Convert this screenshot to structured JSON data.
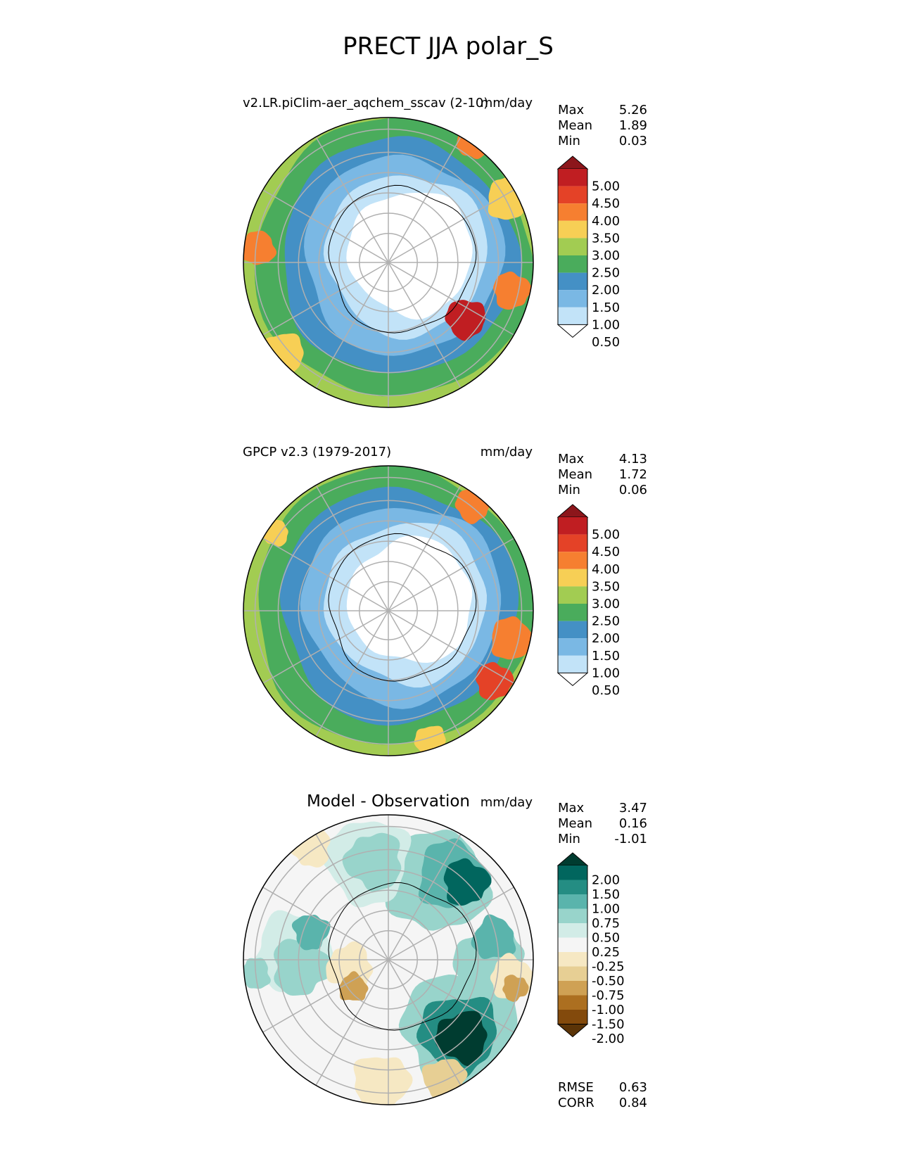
{
  "figure": {
    "title": "PRECT JJA polar_S"
  },
  "chart_data": [
    {
      "type": "heatmap",
      "projection": "south-polar-stereographic",
      "title": "v2.LR.piClim-aer_aqchem_sscav (2-10)",
      "units": "mm/day",
      "stats": [
        {
          "label": "Max",
          "value": "5.26"
        },
        {
          "label": "Mean",
          "value": "1.89"
        },
        {
          "label": "Min",
          "value": "0.03"
        }
      ],
      "colorbar": {
        "ticks": [
          "5.00",
          "4.50",
          "4.00",
          "3.50",
          "3.00",
          "2.50",
          "2.00",
          "1.50",
          "1.00",
          "0.50"
        ],
        "colors": [
          "#8c161b",
          "#c01e22",
          "#e44227",
          "#f67f30",
          "#f7cf55",
          "#a2cc52",
          "#4aac5c",
          "#4490c5",
          "#7ab8e4",
          "#c2e3f8",
          "#ffffff"
        ],
        "extend": "both"
      },
      "zones": [
        2.8,
        2.3,
        1.7,
        1.2,
        0.7
      ]
    },
    {
      "type": "heatmap",
      "projection": "south-polar-stereographic",
      "title": "GPCP v2.3 (1979-2017)",
      "units": "mm/day",
      "stats": [
        {
          "label": "Max",
          "value": "4.13"
        },
        {
          "label": "Mean",
          "value": "1.72"
        },
        {
          "label": "Min",
          "value": "0.06"
        }
      ],
      "colorbar": {
        "ticks": [
          "5.00",
          "4.50",
          "4.00",
          "3.50",
          "3.00",
          "2.50",
          "2.00",
          "1.50",
          "1.00",
          "0.50"
        ],
        "colors": [
          "#8c161b",
          "#c01e22",
          "#e44227",
          "#f67f30",
          "#f7cf55",
          "#a2cc52",
          "#4aac5c",
          "#4490c5",
          "#7ab8e4",
          "#c2e3f8",
          "#ffffff"
        ],
        "extend": "both"
      },
      "zones": [
        2.7,
        2.2,
        1.7,
        1.2,
        0.7
      ]
    },
    {
      "type": "heatmap",
      "projection": "south-polar-stereographic",
      "title": "Model - Observation",
      "units": "mm/day",
      "stats": [
        {
          "label": "Max",
          "value": "3.47"
        },
        {
          "label": "Mean",
          "value": "0.16"
        },
        {
          "label": "Min",
          "value": "-1.01"
        }
      ],
      "colorbar": {
        "ticks": [
          "2.00",
          "1.50",
          "1.00",
          "0.75",
          "0.50",
          "0.25",
          "-0.25",
          "-0.50",
          "-0.75",
          "-1.00",
          "-1.50",
          "-2.00"
        ],
        "colors": [
          "#003c30",
          "#01665e",
          "#248d83",
          "#5ab4ac",
          "#98d4cb",
          "#d2ece7",
          "#f5f5f5",
          "#f6e8c3",
          "#e7cf94",
          "#cfa154",
          "#ac6f20",
          "#834a0c",
          "#5b3407"
        ],
        "extend": "both"
      },
      "metrics": [
        {
          "label": "RMSE",
          "value": "0.63"
        },
        {
          "label": "CORR",
          "value": "0.84"
        }
      ]
    }
  ]
}
